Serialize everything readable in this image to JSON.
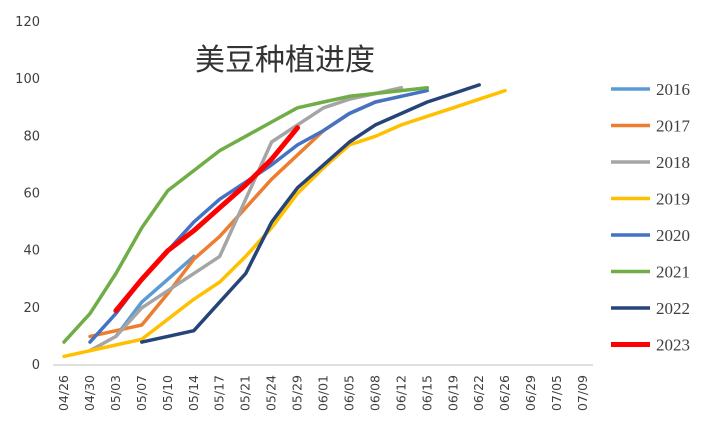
{
  "chart_data": {
    "type": "line",
    "title": "美豆种植进度",
    "xlabel": "",
    "ylabel": "",
    "ylim": [
      0,
      120
    ],
    "yticks": [
      0,
      20,
      40,
      60,
      80,
      100,
      120
    ],
    "categories": [
      "04/26",
      "04/30",
      "05/03",
      "05/07",
      "05/10",
      "05/14",
      "05/17",
      "05/21",
      "05/24",
      "05/29",
      "06/01",
      "06/05",
      "06/08",
      "06/12",
      "06/15",
      "06/19",
      "06/22",
      "06/26",
      "06/29",
      "07/05",
      "07/09"
    ],
    "legend_position": "right",
    "grid": false,
    "series": [
      {
        "name": "2016",
        "color": "#5b9bd5",
        "values": [
          null,
          null,
          10,
          22,
          30,
          38,
          null,
          null,
          null,
          null,
          null,
          null,
          null,
          null,
          null,
          null,
          null,
          null,
          null,
          null,
          null
        ]
      },
      {
        "name": "2017",
        "color": "#ed7d31",
        "values": [
          null,
          10,
          12,
          14,
          25,
          37,
          45,
          55,
          65,
          null,
          82,
          88,
          92,
          94,
          null,
          null,
          null,
          null,
          null,
          null,
          null
        ]
      },
      {
        "name": "2018",
        "color": "#a5a5a5",
        "values": [
          null,
          5,
          10,
          20,
          null,
          null,
          38,
          58,
          78,
          84,
          90,
          93,
          95,
          97,
          null,
          null,
          null,
          null,
          null,
          null,
          null
        ]
      },
      {
        "name": "2019",
        "color": "#ffc000",
        "values": [
          3,
          5,
          7,
          9,
          16,
          23,
          29,
          38,
          48,
          60,
          69,
          77,
          80,
          84,
          87,
          90,
          93,
          96,
          null,
          null,
          null
        ]
      },
      {
        "name": "2020",
        "color": "#4472c4",
        "values": [
          null,
          8,
          18,
          30,
          40,
          50,
          58,
          64,
          70,
          77,
          82,
          88,
          92,
          94,
          96,
          null,
          null,
          null,
          null,
          null,
          null
        ]
      },
      {
        "name": "2021",
        "color": "#70ad47",
        "values": [
          8,
          18,
          32,
          48,
          61,
          68,
          75,
          80,
          85,
          90,
          92,
          94,
          95,
          96,
          97,
          null,
          null,
          null,
          null,
          null,
          null
        ]
      },
      {
        "name": "2022",
        "color": "#264478",
        "values": [
          null,
          null,
          null,
          8,
          10,
          12,
          22,
          32,
          50,
          62,
          70,
          78,
          84,
          88,
          92,
          95,
          98,
          null,
          null,
          null,
          null
        ]
      },
      {
        "name": "2023",
        "color": "#ff0000",
        "values": [
          null,
          null,
          19,
          30,
          40,
          47,
          55,
          63,
          72,
          83,
          null,
          null,
          null,
          null,
          null,
          null,
          null,
          null,
          null,
          null,
          null
        ]
      }
    ]
  }
}
